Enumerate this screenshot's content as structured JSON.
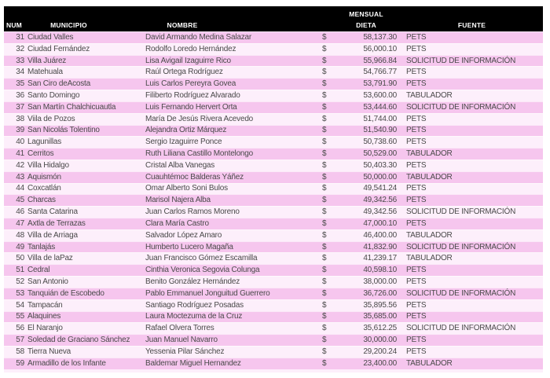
{
  "table": {
    "header": {
      "num": "NUM",
      "municipio": "MUNICIPIO",
      "nombre": "NOMBRE",
      "dieta_line1": "MENSUAL",
      "dieta_line2": "DIETA",
      "fuente": "FUENTE"
    },
    "currency_symbol": "$",
    "rows": [
      {
        "num": "31",
        "municipio": "Ciudad Valles",
        "nombre": "David Armando Medina Salazar",
        "dieta": "58,137.30",
        "fuente": "PETS"
      },
      {
        "num": "32",
        "municipio": "Ciudad Fernández",
        "nombre": "Rodolfo Loredo Hernández",
        "dieta": "56,000.10",
        "fuente": "PETS"
      },
      {
        "num": "33",
        "municipio": "Villa Juárez",
        "nombre": "Lisa Avigail Izaguirre Rico",
        "dieta": "55,966.84",
        "fuente": "SOLICITUD DE INFORMACIÓN"
      },
      {
        "num": "34",
        "municipio": "Matehuala",
        "nombre": "Raúl Ortega Rodríguez",
        "dieta": "54,766.77",
        "fuente": "PETS"
      },
      {
        "num": "35",
        "municipio": "San Ciro deAcosta",
        "nombre": "Luis Carlos Pereyra Govea",
        "dieta": "53,791.90",
        "fuente": "PETS"
      },
      {
        "num": "36",
        "municipio": "Santo Domingo",
        "nombre": "Filiberto Rodríguez Alvarado",
        "dieta": "53,600.00",
        "fuente": "TABULADOR"
      },
      {
        "num": "37",
        "municipio": "San Martín Chalchicuautla",
        "nombre": "Luis Fernando Hervert Orta",
        "dieta": "53,444.60",
        "fuente": "SOLICITUD DE INFORMACIÓN"
      },
      {
        "num": "38",
        "municipio": "Viila de Pozos",
        "nombre": "María De Jesús Rivera Acevedo",
        "dieta": "51,744.00",
        "fuente": "PETS"
      },
      {
        "num": "39",
        "municipio": "San Nicolás Tolentino",
        "nombre": "Alejandra Ortiz Márquez",
        "dieta": "51,540.90",
        "fuente": "PETS"
      },
      {
        "num": "40",
        "municipio": "Lagunillas",
        "nombre": "Sergio Izaguirre Ponce",
        "dieta": "50,738.60",
        "fuente": "PETS"
      },
      {
        "num": "41",
        "municipio": "Cerritos",
        "nombre": "Ruth Liliana Castillo Montelongo",
        "dieta": "50,529.00",
        "fuente": "TABULADOR"
      },
      {
        "num": "42",
        "municipio": "Villa Hidalgo",
        "nombre": "Cristal Alba Vanegas",
        "dieta": "50,403.30",
        "fuente": "PETS"
      },
      {
        "num": "43",
        "municipio": "Aquismón",
        "nombre": "Cuauhtémoc Balderas Yáñez",
        "dieta": "50,000.00",
        "fuente": "TABULADOR"
      },
      {
        "num": "44",
        "municipio": "Coxcatlán",
        "nombre": "Omar Alberto Soni Bulos",
        "dieta": "49,541.24",
        "fuente": "PETS"
      },
      {
        "num": "45",
        "municipio": "Charcas",
        "nombre": "Marisol Najera Alba",
        "dieta": "49,342.56",
        "fuente": "PETS"
      },
      {
        "num": "46",
        "municipio": "Santa Catarina",
        "nombre": "Juan Carlos Ramos Moreno",
        "dieta": "49,342.56",
        "fuente": "SOLICITUD DE INFORMACIÓN"
      },
      {
        "num": "47",
        "municipio": "Axtla de Terrazas",
        "nombre": "Clara María Castro",
        "dieta": "47,000.10",
        "fuente": "PETS"
      },
      {
        "num": "48",
        "municipio": "Villa de Arriaga",
        "nombre": "Salvador López Amaro",
        "dieta": "46,400.00",
        "fuente": "TABULADOR"
      },
      {
        "num": "49",
        "municipio": "Tanlajás",
        "nombre": "Humberto Lucero Magaña",
        "dieta": "41,832.90",
        "fuente": "SOLICITUD DE INFORMACIÓN"
      },
      {
        "num": "50",
        "municipio": "Villa de laPaz",
        "nombre": "Juan Francisco Gómez Escamilla",
        "dieta": "41,239.17",
        "fuente": "TABULADOR"
      },
      {
        "num": "51",
        "municipio": "Cedral",
        "nombre": "Cinthia Veronica Segovia Colunga",
        "dieta": "40,598.10",
        "fuente": "PETS"
      },
      {
        "num": "52",
        "municipio": "San Antonio",
        "nombre": "Benito González Hernández",
        "dieta": "38,000.00",
        "fuente": "PETS"
      },
      {
        "num": "53",
        "municipio": "Tanquián de Escobedo",
        "nombre": "Pablo Emmanuel Jonguitud Guerrero",
        "dieta": "36,726.00",
        "fuente": "SOLICITUD DE INFORMACIÓN"
      },
      {
        "num": "54",
        "municipio": "Tampacán",
        "nombre": "Santiago Rodríguez Posadas",
        "dieta": "35,895.56",
        "fuente": "PETS"
      },
      {
        "num": "55",
        "municipio": "Alaquines",
        "nombre": "Laura Moctezuma de la Cruz",
        "dieta": "35,685.00",
        "fuente": "PETS"
      },
      {
        "num": "56",
        "municipio": "El Naranjo",
        "nombre": "Rafael Olvera Torres",
        "dieta": "35,612.25",
        "fuente": "SOLICITUD DE INFORMACIÓN"
      },
      {
        "num": "57",
        "municipio": "Soledad de Graciano Sánchez",
        "nombre": "Juan Manuel Navarro",
        "dieta": "30,000.00",
        "fuente": "PETS"
      },
      {
        "num": "58",
        "municipio": "Tierra Nueva",
        "nombre": "Yessenia Pilar Sánchez",
        "dieta": "29,200.24",
        "fuente": "PETS"
      },
      {
        "num": "59",
        "municipio": "Armadillo de los Infante",
        "nombre": "Baldemar Miguel Hernandez",
        "dieta": "23,400.00",
        "fuente": "TABULADOR"
      }
    ]
  },
  "colors": {
    "header_bg": "#000000",
    "header_text": "#ffffff",
    "row_pink": "#f6c6ee",
    "row_light": "#fdeffb",
    "body_text": "#4a4a4a"
  }
}
